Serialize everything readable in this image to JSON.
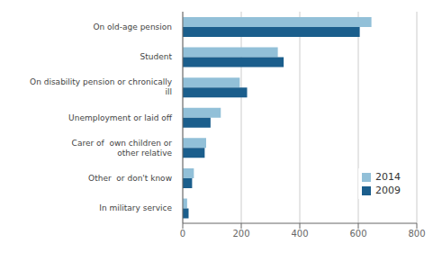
{
  "chart_data": {
    "type": "bar",
    "orientation": "horizontal",
    "categories": [
      "On old-age pension",
      "Student",
      "On disability pension or chronically\n ill",
      "Unemployment or laid off",
      "Carer of  own children or\n other relative",
      "Other  or don't know",
      "In military service"
    ],
    "series": [
      {
        "name": "2014",
        "color": "#92c0d8",
        "values": [
          645,
          325,
          195,
          130,
          80,
          38,
          15
        ]
      },
      {
        "name": "2009",
        "color": "#1b5e8c",
        "values": [
          605,
          345,
          220,
          95,
          75,
          32,
          20
        ]
      }
    ],
    "xlim": [
      0,
      800
    ],
    "xticks": [
      0,
      200,
      400,
      600,
      800
    ],
    "grid": true,
    "legend": "right"
  }
}
